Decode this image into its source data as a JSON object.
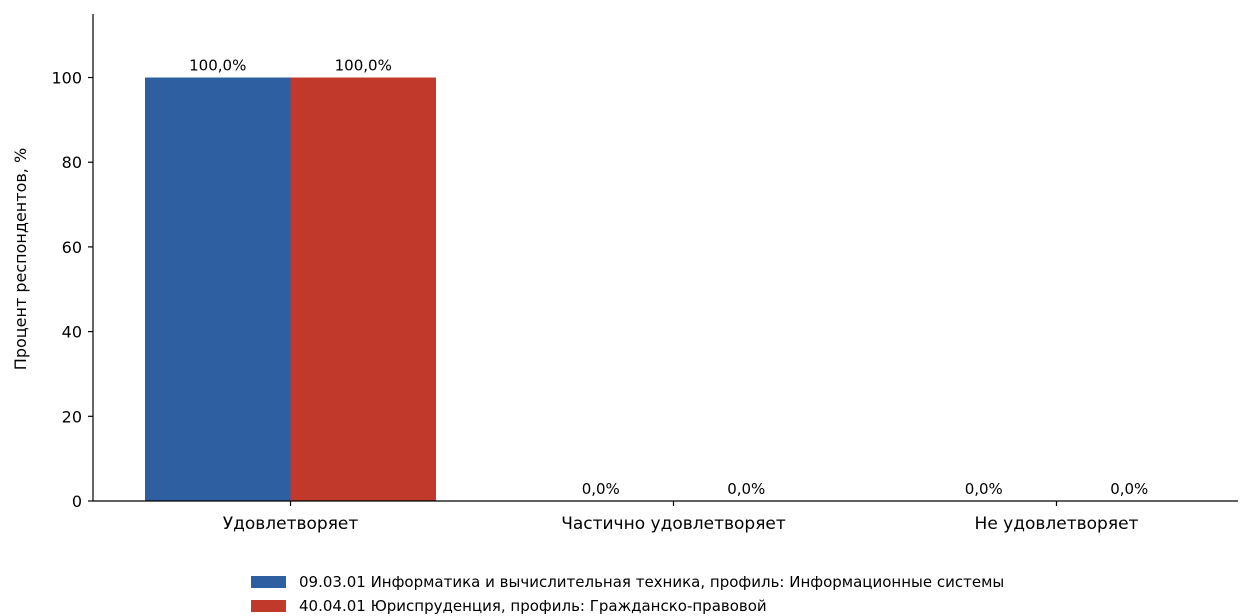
{
  "chart_data": {
    "type": "bar",
    "title": "",
    "xlabel": "",
    "ylabel": "Процент респондентов, %",
    "ylim": [
      0,
      115
    ],
    "yticks": [
      0,
      20,
      40,
      60,
      80,
      100
    ],
    "categories": [
      "Удовлетворяет",
      "Частично удовлетворяет",
      "Не удовлетворяет"
    ],
    "series": [
      {
        "name": "09.03.01 Информатика и вычислительная техника, профиль: Информационные системы",
        "color": "#2e5fa0",
        "values": [
          100.0,
          0.0,
          0.0
        ],
        "labels": [
          "100,0%",
          "0,0%",
          "0,0%"
        ]
      },
      {
        "name": "40.04.01 Юриспруденция, профиль: Гражданско-правовой",
        "color": "#c0392b",
        "values": [
          100.0,
          0.0,
          0.0
        ],
        "labels": [
          "100,0%",
          "0,0%",
          "0,0%"
        ]
      }
    ],
    "grid": false,
    "legend_position": "bottom-center"
  }
}
